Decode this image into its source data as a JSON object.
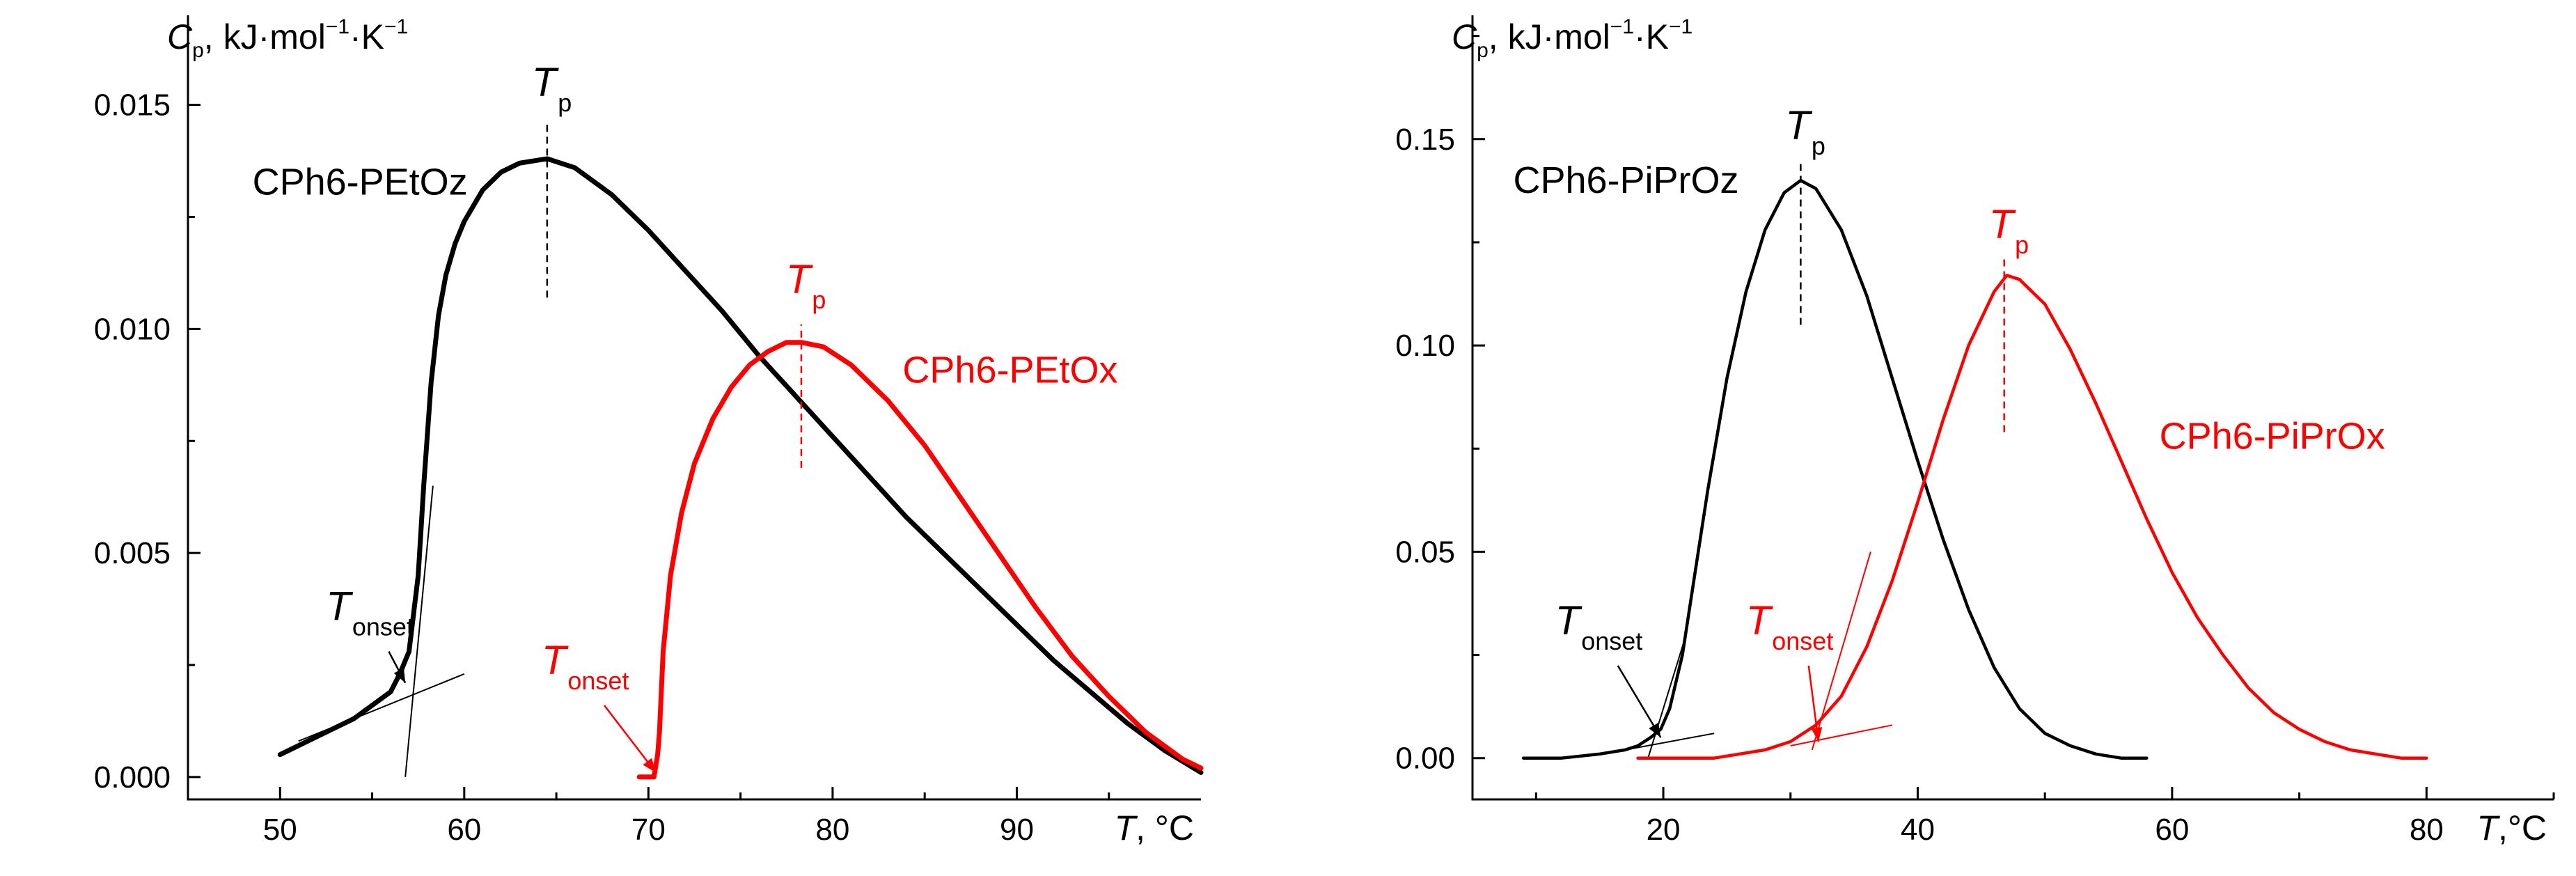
{
  "chart_data": [
    {
      "type": "line",
      "ylabel": {
        "symbol": "C",
        "subscript": "p",
        "unit": "kJ·mol",
        "exp1": "−1",
        "unit2": "·K",
        "exp2": "−1"
      },
      "xlabel": {
        "symbol": "T",
        "unit": ", °C"
      },
      "xlim": [
        45,
        100
      ],
      "ylim": [
        -0.0005,
        0.017
      ],
      "xticks": [
        50,
        60,
        70,
        80,
        90
      ],
      "yticks": [
        0.0,
        0.005,
        0.01,
        0.015
      ],
      "ytick_labels": [
        "0.000",
        "0.005",
        "0.010",
        "0.015"
      ],
      "colors": {
        "black": "#000000",
        "red": "#ff0000"
      },
      "series": [
        {
          "name": "CPh6-PEtOz",
          "color": "#000000",
          "x": [
            50,
            52,
            54,
            55,
            56,
            56.5,
            57,
            57.5,
            57.8,
            58.2,
            58.6,
            59,
            59.5,
            60,
            61,
            62,
            63,
            64.5,
            66,
            68,
            70,
            72,
            74,
            76,
            78,
            80,
            82,
            84,
            86,
            88,
            90,
            92,
            94,
            96,
            98,
            100
          ],
          "y": [
            0.0005,
            0.0009,
            0.0013,
            0.0016,
            0.0019,
            0.0023,
            0.0028,
            0.0045,
            0.0065,
            0.0088,
            0.0103,
            0.0112,
            0.0119,
            0.0124,
            0.0131,
            0.0135,
            0.0137,
            0.0138,
            0.0136,
            0.013,
            0.0122,
            0.0113,
            0.0104,
            0.0094,
            0.0085,
            0.0076,
            0.0067,
            0.0058,
            0.005,
            0.0042,
            0.0034,
            0.0026,
            0.0019,
            0.0012,
            0.0006,
            0.0001
          ]
        },
        {
          "name": "CPh6-PEtOx",
          "color": "#ff0000",
          "x": [
            69.5,
            70.3,
            70.5,
            70.6,
            70.8,
            71.2,
            71.8,
            72.5,
            73.5,
            74.5,
            75.5,
            76.5,
            77.5,
            78.3,
            79.5,
            81,
            83,
            85,
            87,
            89,
            91,
            93,
            95,
            97,
            99,
            100
          ],
          "y": [
            0.0,
            0.0,
            0.0005,
            0.001,
            0.0028,
            0.0045,
            0.0059,
            0.007,
            0.008,
            0.0087,
            0.0092,
            0.0095,
            0.0097,
            0.0097,
            0.0096,
            0.0092,
            0.0084,
            0.0074,
            0.0062,
            0.005,
            0.0038,
            0.0027,
            0.0018,
            0.001,
            0.0004,
            0.0002
          ]
        }
      ],
      "tangents": [
        {
          "color": "#000000",
          "x": [
            51,
            60
          ],
          "y": [
            0.0008,
            0.0023
          ]
        },
        {
          "color": "#000000",
          "x": [
            56.8,
            58.3
          ],
          "y": [
            0.0,
            0.0065
          ]
        }
      ],
      "annotations": [
        {
          "id": "tp1",
          "text": "T",
          "sub": "p",
          "color": "#000000",
          "x": 64.5,
          "y_text": 0.0152,
          "line": [
            0.0107,
            0.0146
          ]
        },
        {
          "id": "tp2",
          "text": "T",
          "sub": "p",
          "color": "#ff0000",
          "x": 78.3,
          "y_text": 0.0108,
          "line": [
            0.0069,
            0.0101
          ]
        },
        {
          "id": "tonset1",
          "text": "T",
          "sub": "onset",
          "color": "#000000",
          "x_text": 52.5,
          "y_text": 0.0035,
          "arrow_to": [
            56.8,
            0.0021
          ]
        },
        {
          "id": "tonset2",
          "text": "T",
          "sub": "onset",
          "color": "#ff0000",
          "x_text": 64.2,
          "y_text": 0.0023,
          "arrow_to": [
            70.4,
            0.0001
          ]
        }
      ],
      "series_labels": [
        {
          "text": "CPh6-PEtOz",
          "color": "#000000",
          "x": 48.5,
          "y": 0.013
        },
        {
          "text": "CPh6-PEtOx",
          "color": "#ff0000",
          "x": 83.8,
          "y": 0.0088
        }
      ]
    },
    {
      "type": "line",
      "ylabel": {
        "symbol": "C",
        "subscript": "p",
        "unit": "kJ·mol",
        "exp1": "−1",
        "unit2": "·K",
        "exp2": "−1"
      },
      "xlabel": {
        "symbol": "T",
        "unit": ",°C"
      },
      "xlim": [
        5,
        90
      ],
      "ylim": [
        -0.01,
        0.18
      ],
      "xticks": [
        20,
        40,
        60,
        80
      ],
      "yticks": [
        0.0,
        0.05,
        0.1,
        0.15
      ],
      "ytick_labels": [
        "0.00",
        "0.05",
        "0.10",
        "0.15"
      ],
      "colors": {
        "black": "#000000",
        "red": "#ff0000"
      },
      "series": [
        {
          "name": "CPh6-PiPrOz",
          "color": "#000000",
          "x": [
            9,
            12,
            15,
            17,
            18,
            19,
            19.8,
            20.5,
            21.5,
            22.5,
            23.5,
            25,
            26.5,
            28,
            29.5,
            30.8,
            32,
            34,
            36,
            38,
            40,
            42,
            44,
            46,
            48,
            50,
            52,
            54,
            56,
            58
          ],
          "y": [
            0.0,
            0.0,
            0.001,
            0.002,
            0.003,
            0.005,
            0.007,
            0.012,
            0.025,
            0.045,
            0.065,
            0.092,
            0.113,
            0.128,
            0.137,
            0.14,
            0.138,
            0.128,
            0.112,
            0.092,
            0.072,
            0.053,
            0.036,
            0.022,
            0.012,
            0.006,
            0.003,
            0.001,
            0.0,
            0.0
          ],
          "x_note": "degrees C"
        },
        {
          "name": "CPh6-PiPrOx",
          "color": "#ff0000",
          "x": [
            18,
            20,
            22,
            24,
            26,
            28,
            30,
            32,
            34,
            36,
            38,
            40,
            42,
            44,
            46,
            47,
            48,
            50,
            52,
            54,
            56,
            58,
            60,
            62,
            64,
            66,
            68,
            70,
            72,
            74,
            76,
            78,
            80
          ],
          "y": [
            0.0,
            0.0,
            0.0,
            0.0,
            0.001,
            0.002,
            0.004,
            0.008,
            0.015,
            0.027,
            0.043,
            0.062,
            0.082,
            0.1,
            0.113,
            0.117,
            0.116,
            0.11,
            0.099,
            0.086,
            0.072,
            0.058,
            0.045,
            0.034,
            0.025,
            0.017,
            0.011,
            0.007,
            0.004,
            0.002,
            0.001,
            0.0,
            0.0
          ]
        }
      ],
      "tangents": [
        {
          "color": "#000000",
          "x": [
            17,
            24
          ],
          "y": [
            0.002,
            0.006
          ]
        },
        {
          "color": "#000000",
          "x": [
            18.8,
            21.8
          ],
          "y": [
            0.0,
            0.03
          ]
        },
        {
          "color": "#ff0000",
          "x": [
            30,
            38
          ],
          "y": [
            0.003,
            0.008
          ]
        },
        {
          "color": "#ff0000",
          "x": [
            31.7,
            36.3
          ],
          "y": [
            0.002,
            0.05
          ]
        }
      ],
      "annotations": [
        {
          "id": "tp3",
          "text": "T",
          "sub": "p",
          "color": "#000000",
          "x": 30.8,
          "y_text": 0.15,
          "line": [
            0.105,
            0.145
          ]
        },
        {
          "id": "tp4",
          "text": "T",
          "sub": "p",
          "color": "#ff0000",
          "x": 46.8,
          "y_text": 0.126,
          "line": [
            0.079,
            0.121
          ]
        },
        {
          "id": "tonset3",
          "text": "T",
          "sub": "onset",
          "color": "#000000",
          "x_text": 11.5,
          "y_text": 0.03,
          "arrow_to": [
            19.8,
            0.005
          ]
        },
        {
          "id": "tonset4",
          "text": "T",
          "sub": "onset",
          "color": "#ff0000",
          "x_text": 26.5,
          "y_text": 0.03,
          "arrow_to": [
            32.2,
            0.004
          ]
        }
      ],
      "series_labels": [
        {
          "text": "CPh6-PiPrOz",
          "color": "#000000",
          "x": 8.2,
          "y": 0.137
        },
        {
          "text": "CPh6-PiPrOx",
          "color": "#ff0000",
          "x": 59,
          "y": 0.075
        }
      ]
    }
  ]
}
